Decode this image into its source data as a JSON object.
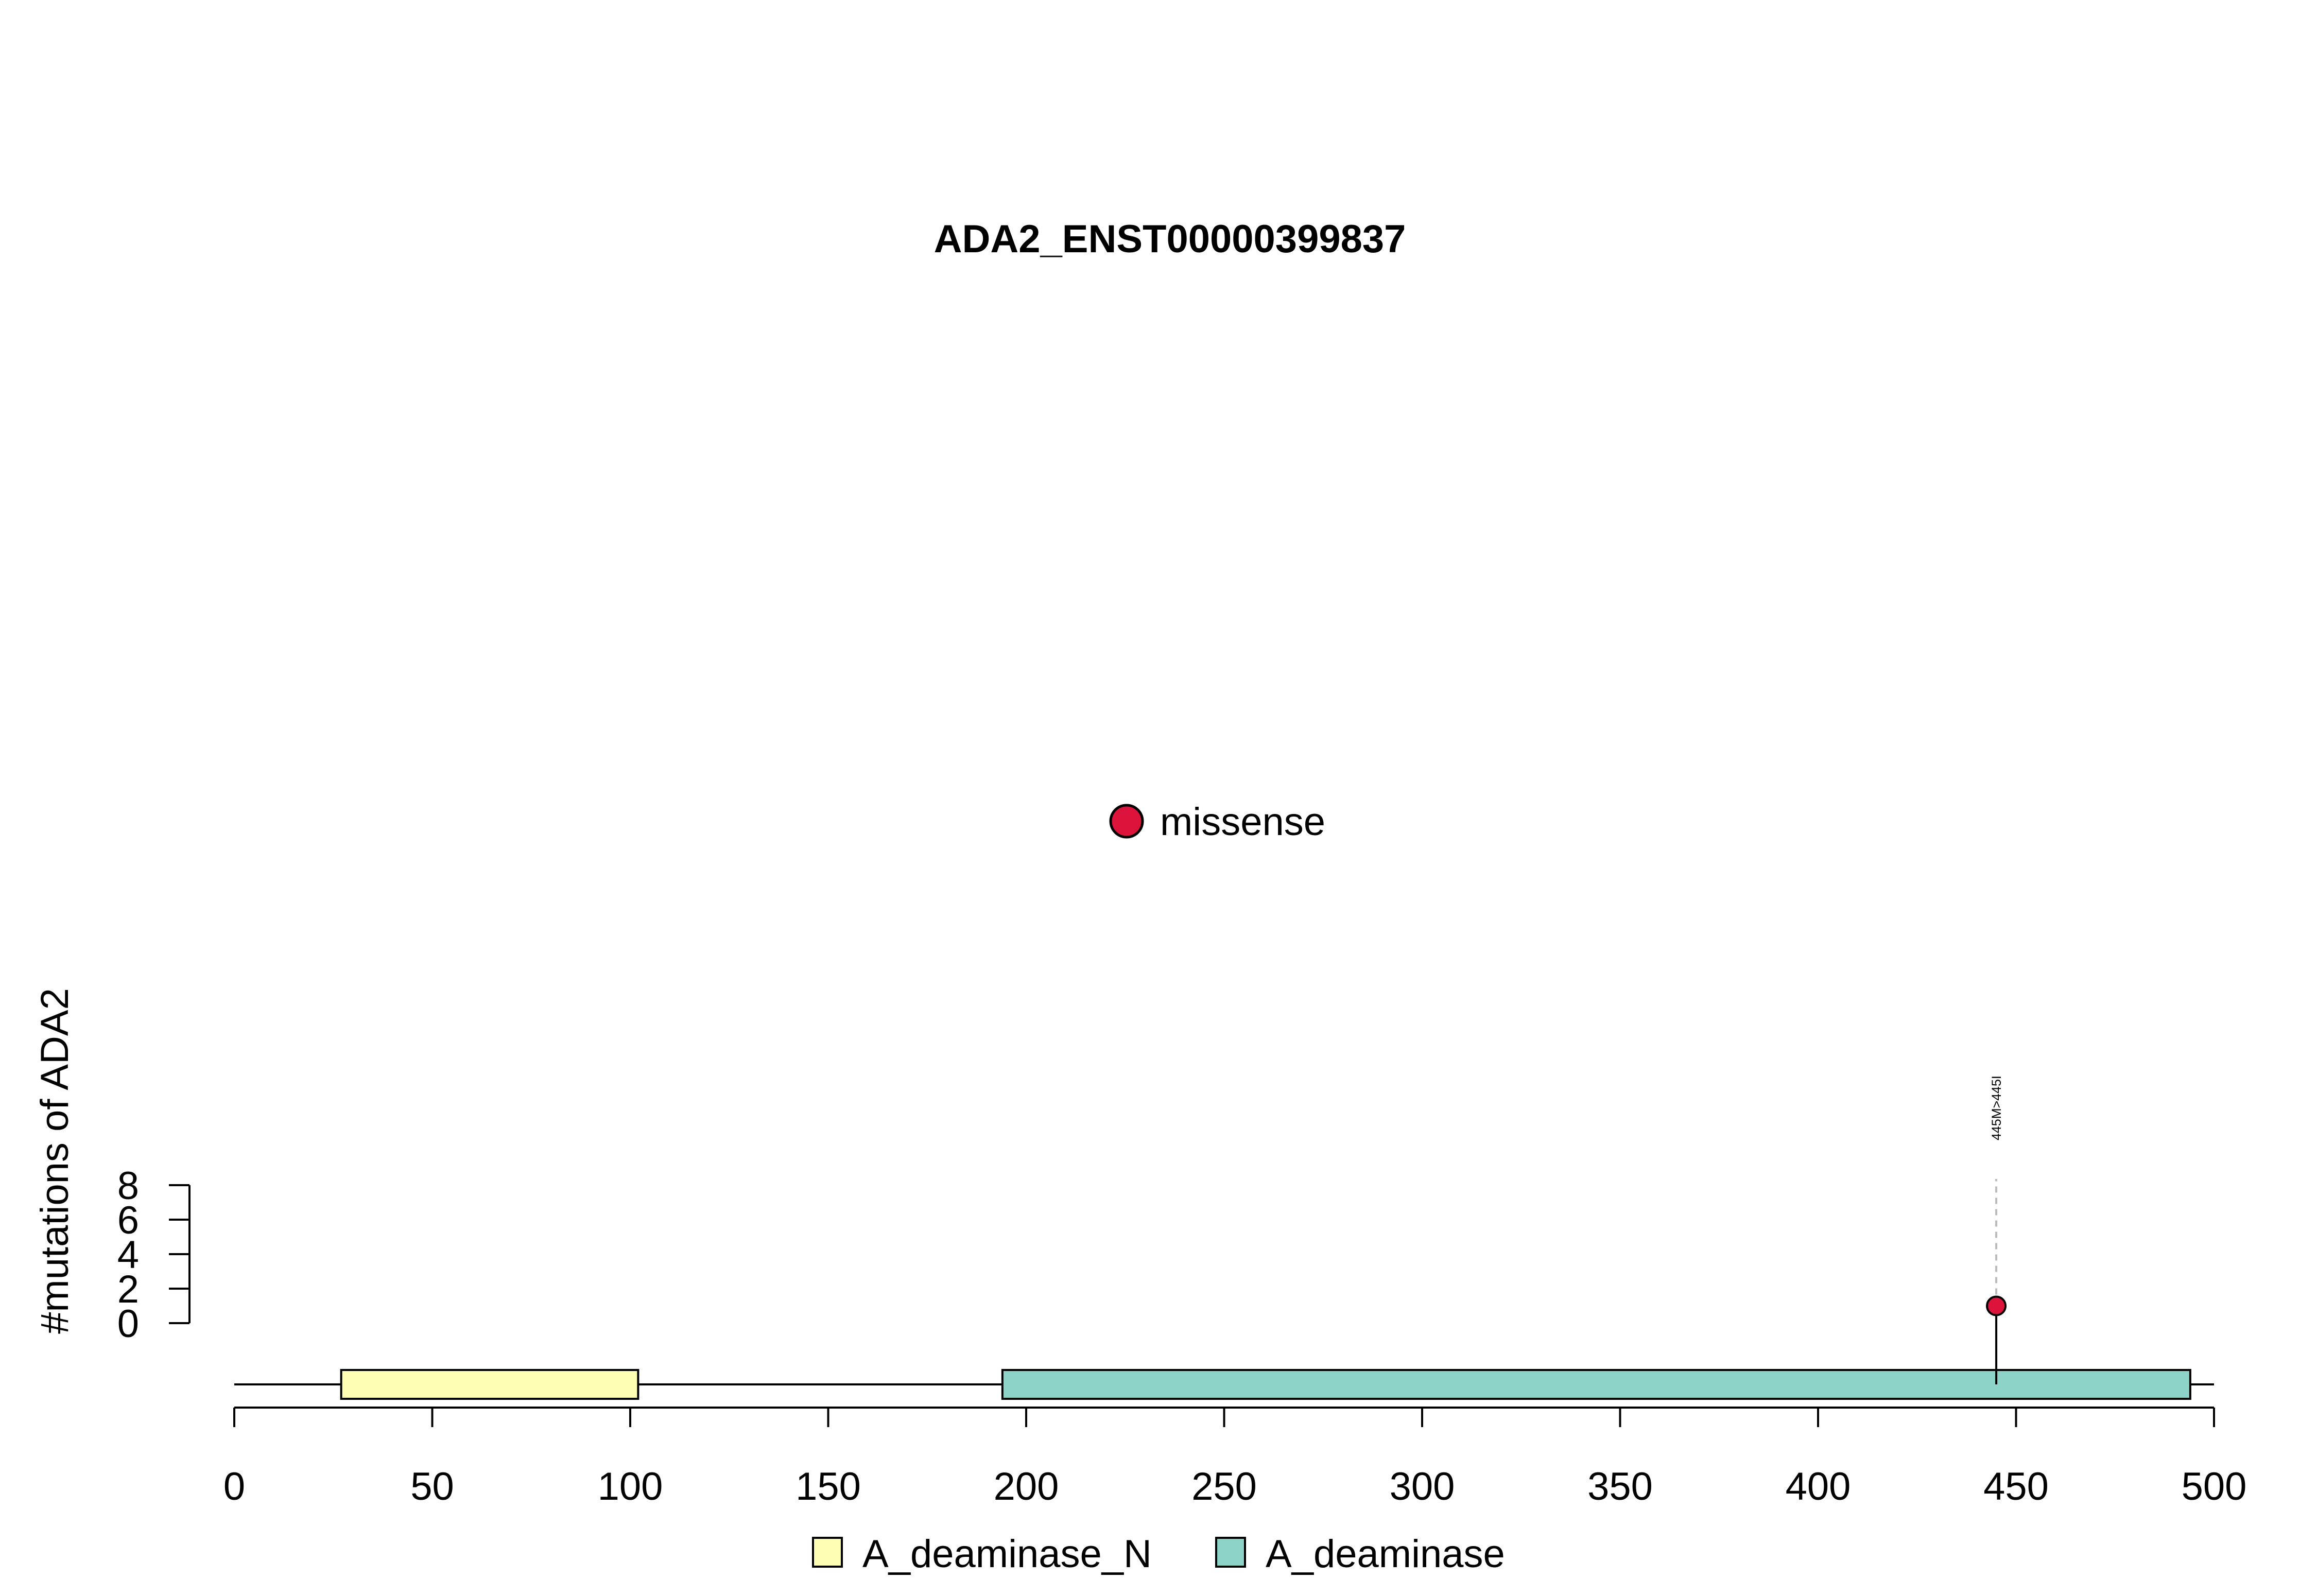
{
  "chart_data": {
    "type": "lollipop",
    "title": "ADA2_ENST00000399837",
    "ylabel": "#mutations of ADA2",
    "xlabel": "",
    "xlim": [
      0,
      500
    ],
    "x_ticks": [
      0,
      50,
      100,
      150,
      200,
      250,
      300,
      350,
      400,
      450,
      500
    ],
    "ylim": [
      0,
      8
    ],
    "y_ticks": [
      0,
      2,
      4,
      6,
      8
    ],
    "protein_length": 500,
    "domains": [
      {
        "name": "A_deaminase_N",
        "start": 27,
        "end": 102,
        "color": "#FFFFB3"
      },
      {
        "name": "A_deaminase",
        "start": 194,
        "end": 494,
        "color": "#8DD3C7"
      }
    ],
    "mutations": [
      {
        "position": 445,
        "count": 1,
        "type": "missense",
        "label": "445M>445I"
      }
    ],
    "mutation_legend": [
      {
        "type": "missense",
        "color": "#DC143C"
      }
    ],
    "domain_legend": [
      "A_deaminase_N",
      "A_deaminase"
    ]
  }
}
